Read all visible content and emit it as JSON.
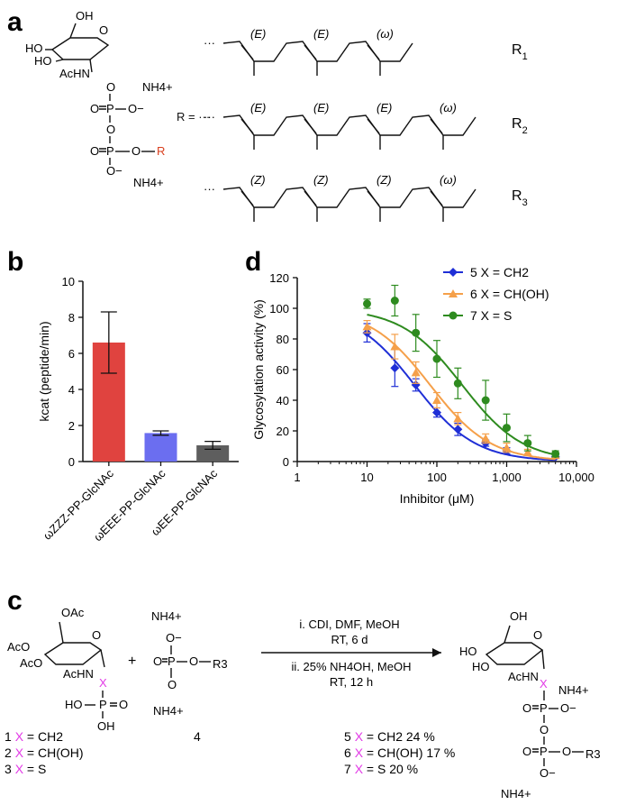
{
  "panel_a": {
    "letter": "a",
    "donor_labels": {
      "oh": "OH",
      "ho": "HO",
      "ho2": "HO",
      "achn": "AcHN",
      "nh4_top": "NH4+",
      "nh4_bot": "NH4+",
      "r_label": "R"
    },
    "phosphate_labels": {
      "o1": "O",
      "p1": "P",
      "o_minus1": "O−",
      "o_bridge": "O",
      "o2": "O",
      "p2": "P",
      "o3": "O",
      "o_minus2": "O−",
      "oeq1": "O",
      "oeq2": "O"
    },
    "r_equals": "R = ···",
    "chain_prefix": "···",
    "chains": [
      {
        "name": "R1",
        "stereo": [
          "(E)",
          "(E)",
          "(ω)"
        ]
      },
      {
        "name": "R2",
        "stereo": [
          "(E)",
          "(E)",
          "(E)",
          "(ω)"
        ]
      },
      {
        "name": "R3",
        "stereo": [
          "(Z)",
          "(Z)",
          "(Z)",
          "(ω)"
        ]
      }
    ],
    "colors": {
      "r_highlight": "#d9401f"
    }
  },
  "panel_b": {
    "letter": "b",
    "chart_data": {
      "type": "bar",
      "categories": [
        "ωZZZ-PP-GlcNAc",
        "ωEEE-PP-GlcNAc",
        "ωEE-PP-GlcNAc"
      ],
      "values": [
        6.6,
        1.58,
        0.9
      ],
      "errors": [
        1.7,
        0.12,
        0.22
      ],
      "colors": [
        "#e0433f",
        "#6b6ef0",
        "#5e5e5e"
      ],
      "ylabel": "kcat (peptide/min)",
      "ylim": [
        0,
        10
      ],
      "yticks": [
        "0",
        "2",
        "4",
        "6",
        "8",
        "10"
      ]
    }
  },
  "panel_d": {
    "letter": "d",
    "chart_data": {
      "type": "scatter",
      "xscale": "log",
      "xlim": [
        1,
        10000
      ],
      "ylim": [
        0,
        120
      ],
      "xticks": [
        "1",
        "10",
        "100",
        "1,000",
        "10,000"
      ],
      "yticks": [
        "0",
        "20",
        "40",
        "60",
        "80",
        "100",
        "120"
      ],
      "xlabel": "Inhibitor (μM)",
      "ylabel": "Glycosylation activity (%)",
      "legend_position": "top-right",
      "series": [
        {
          "name": "5 X = CH2",
          "color": "#1f2fd6",
          "marker": "diamond",
          "ic50": 48,
          "top": 100,
          "hill": 1.0,
          "x": [
            10,
            25,
            50,
            100,
            200,
            500,
            1000,
            5000
          ],
          "y": [
            84,
            61,
            50,
            32,
            21,
            12,
            7,
            3
          ],
          "err": [
            6,
            12,
            4,
            3,
            4,
            2,
            2,
            1
          ]
        },
        {
          "name": "6 X = CH(OH)",
          "color": "#f5a04a",
          "marker": "triangle",
          "ic50": 80,
          "top": 100,
          "hill": 1.0,
          "x": [
            10,
            25,
            50,
            100,
            200,
            500,
            1000,
            2000,
            5000
          ],
          "y": [
            88,
            75,
            58,
            40,
            28,
            15,
            9,
            6,
            4
          ],
          "err": [
            4,
            8,
            7,
            5,
            4,
            3,
            3,
            2,
            1
          ]
        },
        {
          "name": "7 X = S",
          "color": "#2e8b1f",
          "marker": "circle",
          "ic50": 230,
          "top": 100,
          "hill": 1.0,
          "x": [
            10,
            25,
            50,
            100,
            200,
            500,
            1000,
            2000,
            5000
          ],
          "y": [
            103,
            105,
            84,
            67,
            51,
            40,
            22,
            12,
            5
          ],
          "err": [
            3,
            10,
            12,
            12,
            10,
            13,
            9,
            5,
            2
          ]
        }
      ]
    }
  },
  "panel_c": {
    "letter": "c",
    "reactant1": {
      "oac1": "OAc",
      "aco1": "AcO",
      "aco2": "AcO",
      "achn": "AcHN",
      "x": "X",
      "o": "O",
      "p": "P",
      "ho": "HO",
      "oh": "OH"
    },
    "reactant2": {
      "nh4_top": "NH4+",
      "o_minus": "O−",
      "o_eq": "O",
      "p": "P",
      "o_r": "O",
      "r3": "R3",
      "nh4_bot": "NH4+",
      "o": "O"
    },
    "plus": "+",
    "compound4": "4",
    "reagents": [
      "i. CDI, DMF, MeOH",
      "RT, 6 d",
      "ii. 25% NH4OH, MeOH",
      "RT, 12 h"
    ],
    "compounds": [
      {
        "num": "1",
        "x": "X",
        "rest": " = CH2"
      },
      {
        "num": "2",
        "x": "X",
        "rest": " = CH(OH)"
      },
      {
        "num": "3",
        "x": "X",
        "rest": " = S"
      }
    ],
    "products": [
      {
        "num": "5",
        "x": "X",
        "rest": " = CH2 24 %"
      },
      {
        "num": "6",
        "x": "X",
        "rest": " = CH(OH) 17 %"
      },
      {
        "num": "7",
        "x": "X",
        "rest": " = S 20 %"
      }
    ],
    "product_labels": {
      "oh": "OH",
      "ho": "HO",
      "ho2": "HO",
      "achn": "AcHN",
      "x": "X",
      "nh4_top": "NH4+",
      "o1": "O",
      "p1": "P",
      "o_minus1": "O−",
      "o_bridge": "O",
      "o2": "O",
      "p2": "P",
      "o_r": "O",
      "r3": "R3",
      "o_minus2": "O−",
      "nh4_bot": "NH4+"
    },
    "colors": {
      "x_highlight": "#e23be6"
    }
  }
}
